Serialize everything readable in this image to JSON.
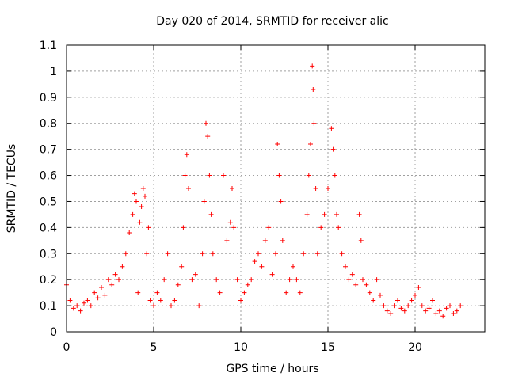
{
  "chart_data": {
    "type": "scatter",
    "title": "Day 020 of 2014, SRMTID for receiver alic",
    "xlabel": "GPS time / hours",
    "ylabel": "SRMTID / TECUs",
    "xlim": [
      0,
      24
    ],
    "ylim": [
      0,
      1.1
    ],
    "xticks": [
      0,
      5,
      10,
      15,
      20
    ],
    "xtick_labels": [
      "0",
      "5",
      "10",
      "15",
      "20"
    ],
    "yticks": [
      0,
      0.1,
      0.2,
      0.3,
      0.4,
      0.5,
      0.6,
      0.7,
      0.8,
      0.9,
      1,
      1.1
    ],
    "ytick_labels": [
      "0",
      "0.1",
      "0.2",
      "0.3",
      "0.4",
      "0.5",
      "0.6",
      "0.7",
      "0.8",
      "0.9",
      "1",
      "1.1"
    ],
    "grid": true,
    "marker": "+",
    "color": "#ff0000",
    "series": [
      {
        "name": "SRMTID",
        "x": [
          0.0,
          0.2,
          0.4,
          0.6,
          0.8,
          1.0,
          1.2,
          1.4,
          1.6,
          1.8,
          2.0,
          2.2,
          2.4,
          2.6,
          2.8,
          3.0,
          3.2,
          3.4,
          3.6,
          3.8,
          3.9,
          4.0,
          4.1,
          4.2,
          4.3,
          4.4,
          4.5,
          4.6,
          4.7,
          4.8,
          5.0,
          5.2,
          5.4,
          5.6,
          5.8,
          6.0,
          6.2,
          6.4,
          6.6,
          6.7,
          6.8,
          6.9,
          7.0,
          7.2,
          7.4,
          7.6,
          7.8,
          7.9,
          8.0,
          8.1,
          8.2,
          8.3,
          8.4,
          8.6,
          8.8,
          9.0,
          9.2,
          9.4,
          9.5,
          9.6,
          9.8,
          10.0,
          10.2,
          10.4,
          10.6,
          10.8,
          11.0,
          11.2,
          11.4,
          11.6,
          11.8,
          12.0,
          12.1,
          12.2,
          12.3,
          12.4,
          12.6,
          12.8,
          13.0,
          13.2,
          13.4,
          13.6,
          13.8,
          13.9,
          14.0,
          14.1,
          14.15,
          14.2,
          14.3,
          14.4,
          14.6,
          14.8,
          15.0,
          15.2,
          15.3,
          15.4,
          15.5,
          15.6,
          15.8,
          16.0,
          16.2,
          16.4,
          16.6,
          16.8,
          16.9,
          17.0,
          17.2,
          17.4,
          17.6,
          17.8,
          18.0,
          18.2,
          18.4,
          18.6,
          18.8,
          19.0,
          19.2,
          19.4,
          19.6,
          19.8,
          20.0,
          20.2,
          20.4,
          20.6,
          20.8,
          21.0,
          21.2,
          21.4,
          21.6,
          21.8,
          22.0,
          22.2,
          22.4,
          22.6
        ],
        "y": [
          0.18,
          0.12,
          0.09,
          0.1,
          0.08,
          0.11,
          0.12,
          0.1,
          0.15,
          0.13,
          0.17,
          0.14,
          0.2,
          0.18,
          0.22,
          0.2,
          0.25,
          0.3,
          0.38,
          0.45,
          0.53,
          0.5,
          0.15,
          0.42,
          0.48,
          0.55,
          0.52,
          0.3,
          0.4,
          0.12,
          0.1,
          0.15,
          0.12,
          0.2,
          0.3,
          0.1,
          0.12,
          0.18,
          0.25,
          0.4,
          0.6,
          0.68,
          0.55,
          0.2,
          0.22,
          0.1,
          0.3,
          0.5,
          0.8,
          0.75,
          0.6,
          0.45,
          0.3,
          0.2,
          0.15,
          0.6,
          0.35,
          0.42,
          0.55,
          0.4,
          0.2,
          0.12,
          0.15,
          0.18,
          0.2,
          0.27,
          0.3,
          0.25,
          0.35,
          0.4,
          0.22,
          0.3,
          0.72,
          0.6,
          0.5,
          0.35,
          0.15,
          0.2,
          0.25,
          0.2,
          0.15,
          0.3,
          0.45,
          0.6,
          0.72,
          1.02,
          0.93,
          0.8,
          0.55,
          0.3,
          0.4,
          0.45,
          0.55,
          0.78,
          0.7,
          0.6,
          0.45,
          0.4,
          0.3,
          0.25,
          0.2,
          0.22,
          0.18,
          0.45,
          0.35,
          0.2,
          0.18,
          0.15,
          0.12,
          0.2,
          0.14,
          0.1,
          0.08,
          0.07,
          0.1,
          0.12,
          0.09,
          0.08,
          0.1,
          0.12,
          0.14,
          0.17,
          0.1,
          0.08,
          0.09,
          0.12,
          0.07,
          0.08,
          0.06,
          0.09,
          0.1,
          0.07,
          0.08,
          0.1
        ]
      }
    ]
  }
}
